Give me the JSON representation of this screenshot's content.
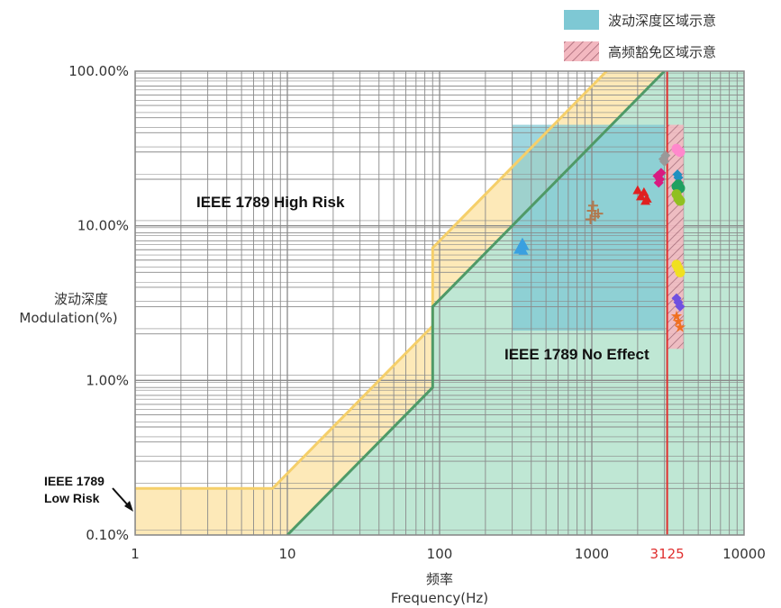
{
  "chart_data": {
    "type": "scatter",
    "x_scale": "log",
    "y_scale": "log",
    "xlim": [
      1,
      10000
    ],
    "ylim": [
      0.1,
      100
    ],
    "grid": true,
    "x_ticks": [
      {
        "value": 1,
        "label": "1",
        "color": "#333333"
      },
      {
        "value": 10,
        "label": "10",
        "color": "#333333"
      },
      {
        "value": 100,
        "label": "100",
        "color": "#333333"
      },
      {
        "value": 1000,
        "label": "1000",
        "color": "#333333"
      },
      {
        "value": 3125,
        "label": "3125",
        "color": "#e03030"
      },
      {
        "value": 10000,
        "label": "10000",
        "color": "#333333"
      }
    ],
    "y_ticks": [
      {
        "value": 0.1,
        "label": "0.10%"
      },
      {
        "value": 1,
        "label": "1.00%"
      },
      {
        "value": 10,
        "label": "10.00%"
      },
      {
        "value": 100,
        "label": "100.00%"
      }
    ],
    "xlabel_cn": "频率",
    "xlabel": "Frequency(Hz)",
    "ylabel_cn": "波动深度",
    "ylabel": "Modulation(%)",
    "legend_position": "top-right",
    "legend": [
      {
        "label": "波动深度区域示意",
        "style": "solid",
        "color": "#7ec8d4"
      },
      {
        "label": "高频豁免区域示意",
        "style": "hatched",
        "color": "#f3b8c0"
      }
    ],
    "annotations": {
      "high_risk": "IEEE 1789 High Risk",
      "no_effect": "IEEE 1789 No Effect",
      "low_risk_line1": "IEEE 1789",
      "low_risk_line2": "Low Risk"
    },
    "boundaries": {
      "low_risk": [
        [
          1,
          0.2
        ],
        [
          8,
          0.2
        ],
        [
          90,
          2.25
        ],
        [
          90,
          7.2
        ],
        [
          1250,
          100
        ]
      ],
      "no_effect": [
        [
          10,
          0.1
        ],
        [
          90,
          0.9
        ],
        [
          90,
          3
        ],
        [
          3000,
          100
        ]
      ]
    },
    "modulation_region": {
      "x": [
        300,
        3000
      ],
      "y": [
        2.1,
        45
      ],
      "color": "#7ec8d4"
    },
    "exemption_region": {
      "x": [
        3125,
        4000
      ],
      "y": [
        1.6,
        45
      ],
      "color": "#f3b8c0"
    },
    "exemption_line": {
      "x": 3125,
      "color": "#e03030"
    },
    "series": [
      {
        "color": "#3aa0e0",
        "marker": "triangle",
        "points": [
          [
            340,
            7.2
          ],
          [
            350,
            7.8
          ],
          [
            360,
            7.4
          ],
          [
            330,
            7.0
          ],
          [
            355,
            6.9
          ]
        ]
      },
      {
        "color": "#b07a50",
        "marker": "plus",
        "points": [
          [
            1000,
            12.5
          ],
          [
            1050,
            11.5
          ],
          [
            1100,
            12.0
          ],
          [
            980,
            11.0
          ],
          [
            1020,
            13.5
          ]
        ]
      },
      {
        "color": "#e02020",
        "marker": "triangle",
        "points": [
          [
            2100,
            15.5
          ],
          [
            2200,
            16.5
          ],
          [
            2300,
            15.0
          ],
          [
            2000,
            17.0
          ],
          [
            2250,
            14.5
          ]
        ]
      },
      {
        "color": "#d81b80",
        "marker": "diamond",
        "points": [
          [
            2700,
            21.0
          ],
          [
            2800,
            20.0
          ],
          [
            2750,
            19.0
          ],
          [
            2850,
            22.0
          ]
        ]
      },
      {
        "color": "#999999",
        "marker": "diamond",
        "points": [
          [
            2950,
            27.0
          ],
          [
            3050,
            28.5
          ],
          [
            3000,
            26.0
          ]
        ]
      },
      {
        "color": "#ff88cc",
        "marker": "circle",
        "points": [
          [
            3700,
            30.5
          ],
          [
            3600,
            31.5
          ],
          [
            3800,
            30.0
          ]
        ]
      },
      {
        "color": "#2090c0",
        "marker": "diamond",
        "points": [
          [
            3700,
            20.5
          ],
          [
            3650,
            21.5
          ]
        ]
      },
      {
        "color": "#20a060",
        "marker": "circle",
        "points": [
          [
            3700,
            18.5
          ],
          [
            3800,
            17.5
          ],
          [
            3600,
            18.0
          ]
        ]
      },
      {
        "color": "#90c020",
        "marker": "circle",
        "points": [
          [
            3700,
            15.0
          ],
          [
            3800,
            14.5
          ],
          [
            3600,
            16.0
          ]
        ]
      },
      {
        "color": "#f0e020",
        "marker": "circle",
        "points": [
          [
            3700,
            5.3
          ],
          [
            3800,
            5.0
          ],
          [
            3600,
            5.6
          ]
        ]
      },
      {
        "color": "#7050e0",
        "marker": "diamond",
        "points": [
          [
            3700,
            3.2
          ],
          [
            3800,
            3.0
          ],
          [
            3600,
            3.4
          ]
        ]
      },
      {
        "color": "#f07020",
        "marker": "star",
        "points": [
          [
            3700,
            2.4
          ],
          [
            3800,
            2.2
          ],
          [
            3600,
            2.6
          ]
        ]
      }
    ]
  }
}
